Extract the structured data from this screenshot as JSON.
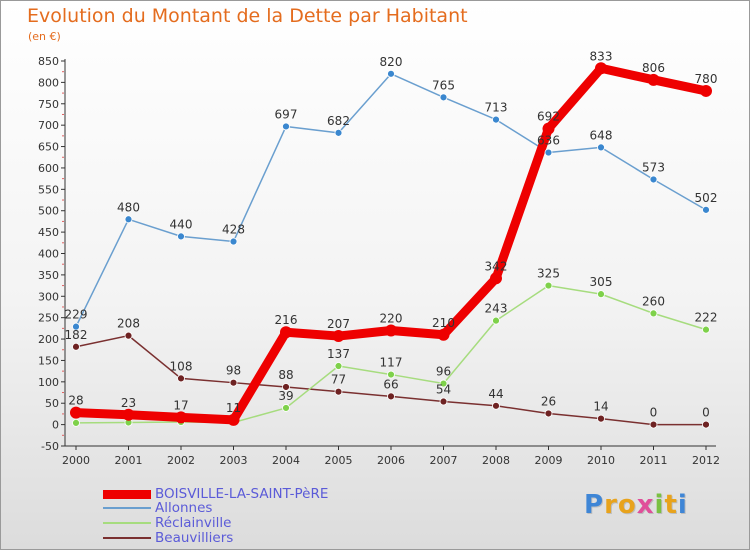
{
  "title": "Evolution du Montant de la Dette par Habitant",
  "subtitle": "(en €)",
  "logo_text": "Proxiti",
  "chart_data": {
    "type": "line",
    "title": "Evolution du Montant de la Dette par Habitant",
    "subtitle": "(en €)",
    "xlabel": "",
    "ylabel": "",
    "ylim": [
      -50,
      850
    ],
    "y_ticks": [
      -50,
      0,
      50,
      100,
      150,
      200,
      250,
      300,
      350,
      400,
      450,
      500,
      550,
      600,
      650,
      700,
      750,
      800,
      850
    ],
    "x": [
      "2000",
      "2001",
      "2002",
      "2003",
      "2004",
      "2005",
      "2006",
      "2007",
      "2008",
      "2009",
      "2010",
      "2011",
      "2012"
    ],
    "grid": false,
    "legend_position": "bottom-left",
    "series": [
      {
        "name": "BOISVILLE-LA-SAINT-PèRE",
        "color": "#ee0000",
        "marker_color": "#ee0000",
        "values": [
          28,
          23,
          17,
          11,
          216,
          207,
          220,
          210,
          342,
          692,
          833,
          806,
          780
        ]
      },
      {
        "name": "Allonnes",
        "color": "#6a9fcf",
        "marker_color": "#3a87cf",
        "values": [
          229,
          480,
          440,
          428,
          697,
          682,
          820,
          765,
          713,
          636,
          648,
          573,
          502
        ]
      },
      {
        "name": "Réclainville",
        "color": "#a6dc7e",
        "marker_color": "#7ed14a",
        "values": [
          4,
          5,
          6,
          5,
          39,
          137,
          117,
          96,
          243,
          325,
          305,
          260,
          222
        ]
      },
      {
        "name": "Beauvilliers",
        "color": "#7a3030",
        "marker_color": "#6e2222",
        "values": [
          182,
          208,
          108,
          98,
          88,
          77,
          66,
          54,
          44,
          26,
          14,
          0,
          0
        ]
      }
    ],
    "data_labels": [
      [
        "28",
        "23",
        "17",
        "11",
        "216",
        "207",
        "220",
        "210",
        "342",
        "692",
        "833",
        "806",
        "780"
      ],
      [
        "229",
        "480",
        "440",
        "428",
        "697",
        "682",
        "820",
        "765",
        "713",
        "636",
        "648",
        "573",
        "502"
      ],
      [
        "",
        "",
        "",
        "",
        "39",
        "137",
        "117",
        "96",
        "243",
        "325",
        "305",
        "260",
        "222"
      ],
      [
        "182",
        "208",
        "108",
        "98",
        "88",
        "77",
        "66",
        "54",
        "44",
        "26",
        "14",
        "0",
        "0"
      ]
    ]
  }
}
